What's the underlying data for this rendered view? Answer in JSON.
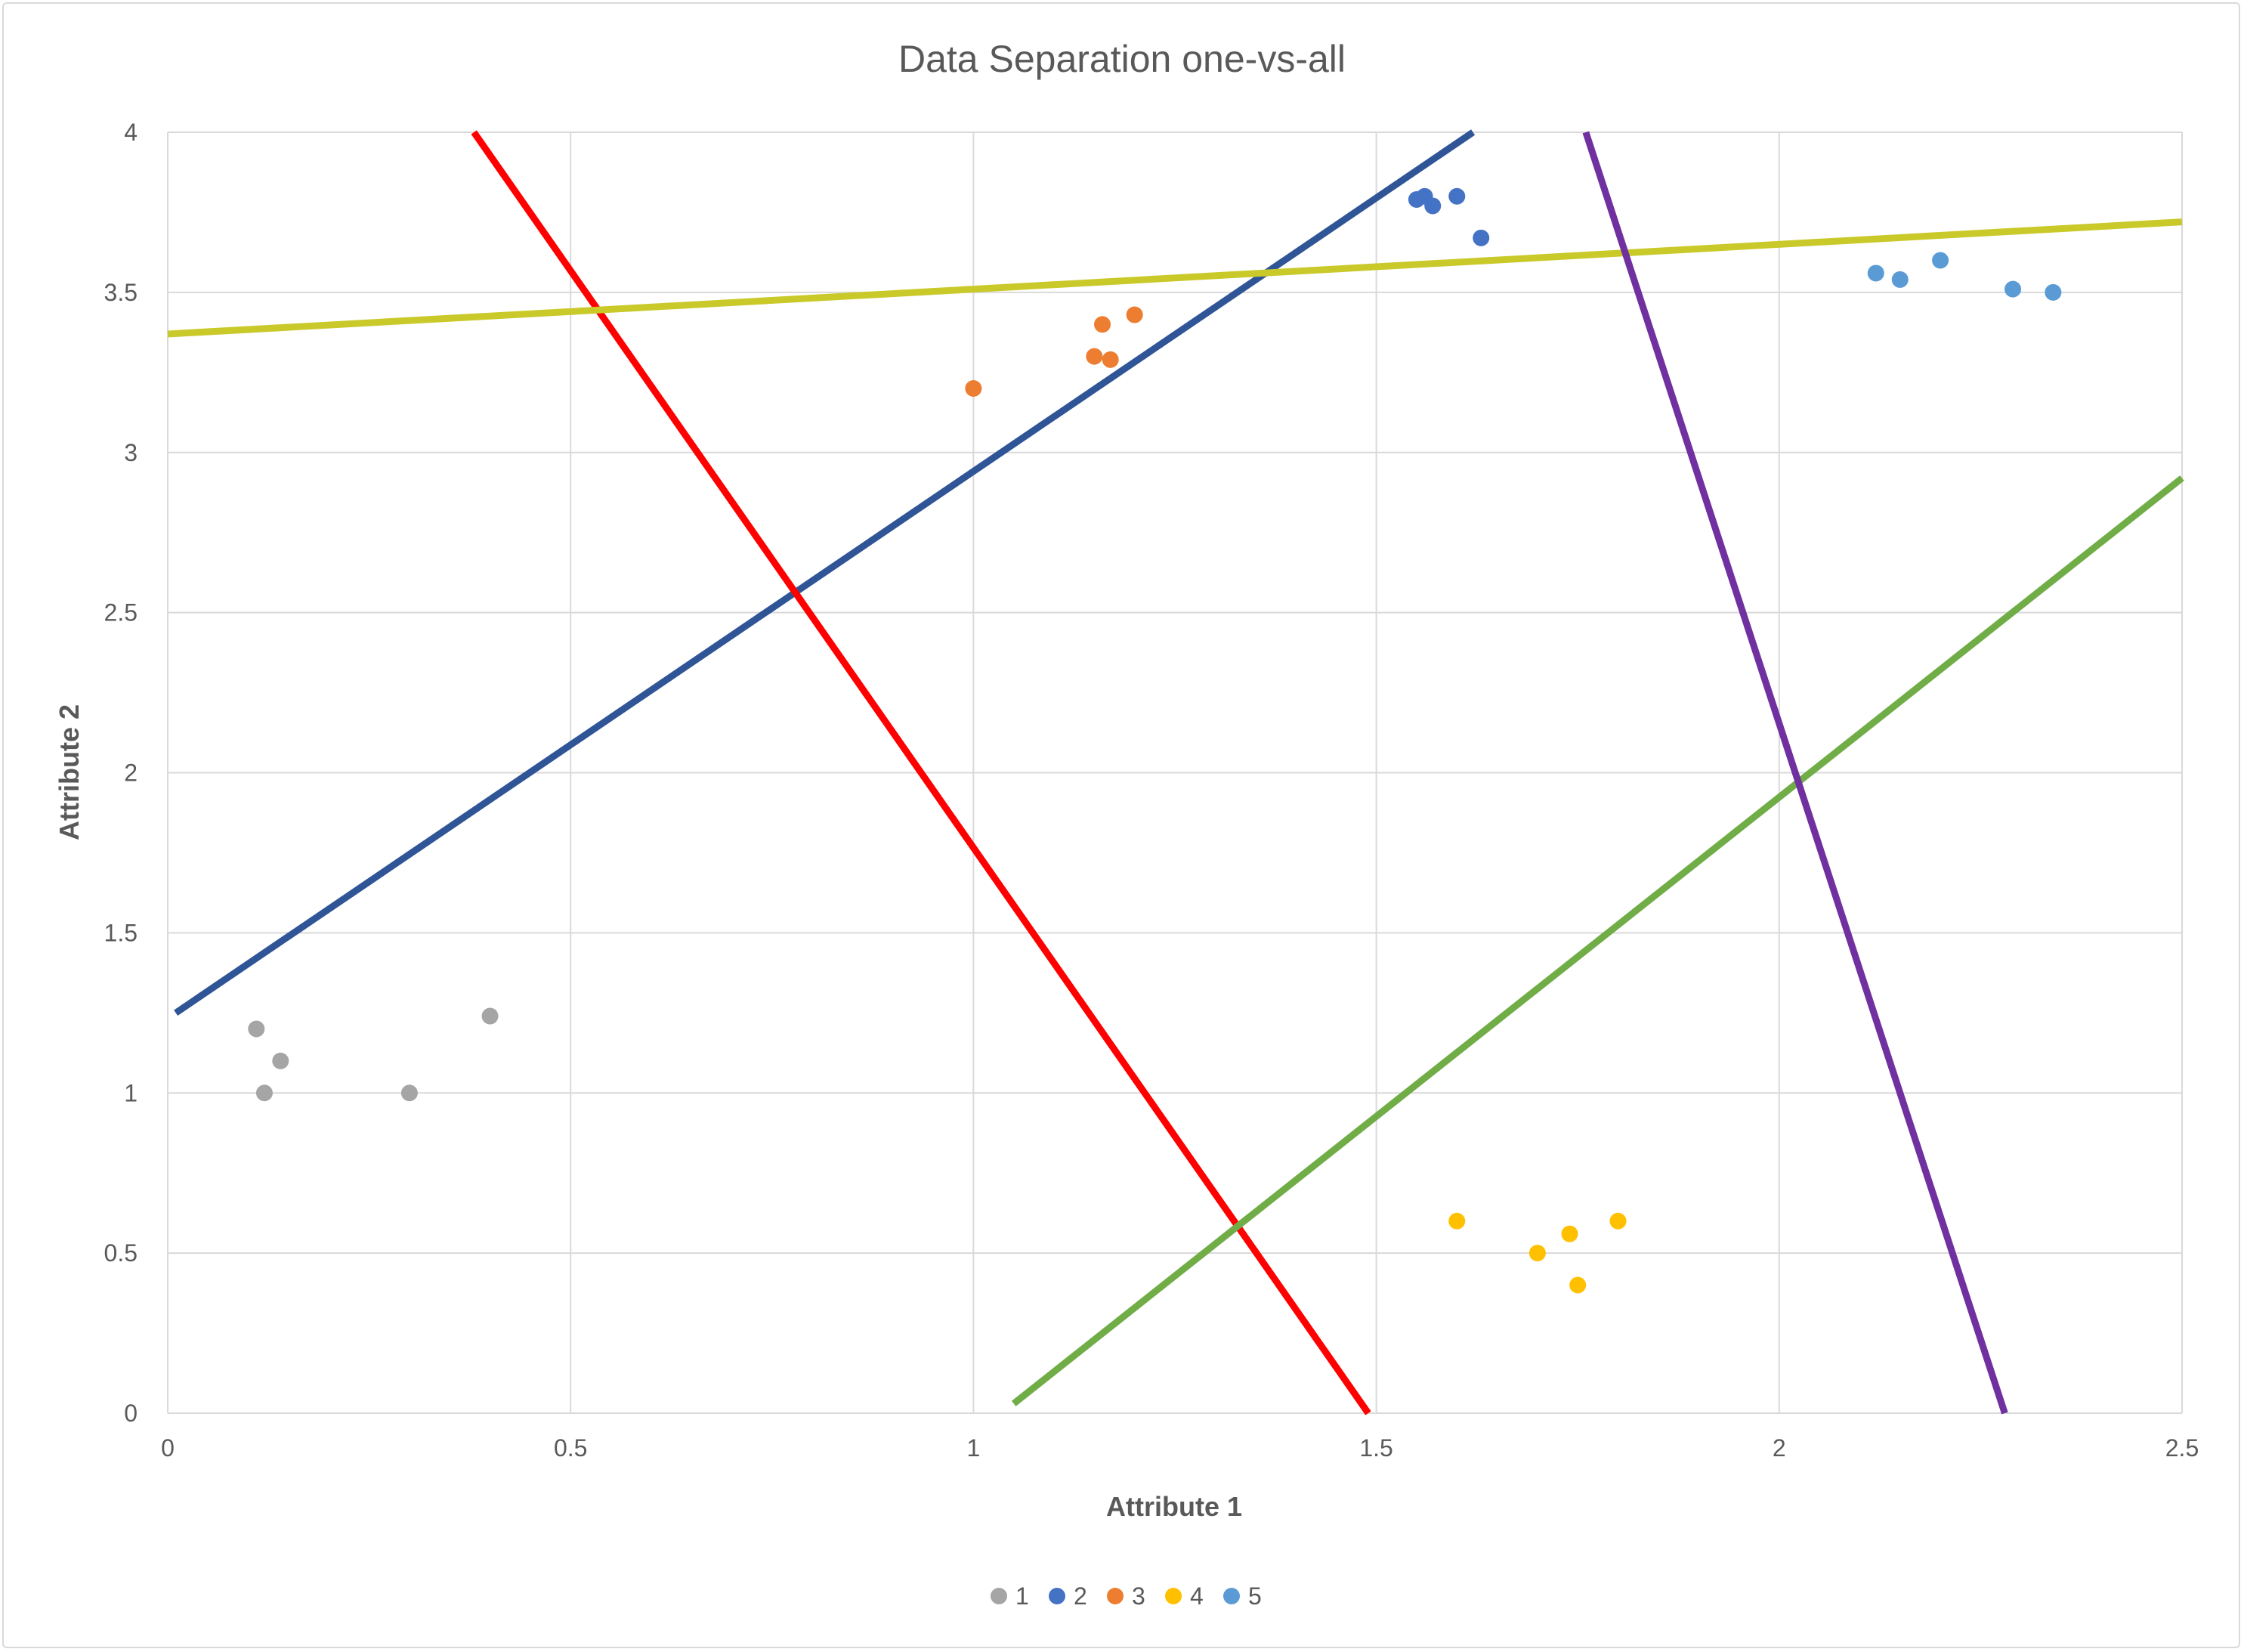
{
  "chart_data": {
    "type": "scatter",
    "title": "Data Separation one-vs-all",
    "xlabel": "Attribute 1",
    "ylabel": "Attribute 2",
    "xlim": [
      0,
      2.5
    ],
    "ylim": [
      0,
      4
    ],
    "x_ticks": [
      "0",
      "0.5",
      "1",
      "1.5",
      "2",
      "2.5"
    ],
    "y_ticks": [
      "0",
      "0.5",
      "1",
      "1.5",
      "2",
      "2.5",
      "3",
      "3.5",
      "4"
    ],
    "grid": true,
    "legend_position": "bottom",
    "series": [
      {
        "name": "1",
        "color": "#a5a5a5",
        "points": [
          [
            0.11,
            1.2
          ],
          [
            0.14,
            1.1
          ],
          [
            0.12,
            1.0
          ],
          [
            0.3,
            1.0
          ],
          [
            0.4,
            1.24
          ]
        ]
      },
      {
        "name": "2",
        "color": "#4472c4",
        "points": [
          [
            1.55,
            3.79
          ],
          [
            1.56,
            3.8
          ],
          [
            1.57,
            3.77
          ],
          [
            1.6,
            3.8
          ],
          [
            1.63,
            3.67
          ]
        ]
      },
      {
        "name": "3",
        "color": "#ed7d31",
        "points": [
          [
            1.0,
            3.2
          ],
          [
            1.15,
            3.3
          ],
          [
            1.16,
            3.4
          ],
          [
            1.17,
            3.29
          ],
          [
            1.2,
            3.43
          ]
        ]
      },
      {
        "name": "4",
        "color": "#ffc000",
        "points": [
          [
            1.6,
            0.6
          ],
          [
            1.7,
            0.5
          ],
          [
            1.74,
            0.56
          ],
          [
            1.75,
            0.4
          ],
          [
            1.8,
            0.6
          ]
        ]
      },
      {
        "name": "5",
        "color": "#5b9bd5",
        "points": [
          [
            2.12,
            3.56
          ],
          [
            2.15,
            3.54
          ],
          [
            2.2,
            3.6
          ],
          [
            2.29,
            3.51
          ],
          [
            2.34,
            3.5
          ]
        ]
      }
    ],
    "separator_lines": [
      {
        "color": "#2f5597",
        "from": [
          0.01,
          1.25
        ],
        "to": [
          1.62,
          4.0
        ]
      },
      {
        "color": "#ff0000",
        "from": [
          0.38,
          4.0
        ],
        "to": [
          1.49,
          0.0
        ]
      },
      {
        "color": "#c9c92a",
        "from": [
          0.0,
          3.37
        ],
        "to": [
          2.5,
          3.72
        ]
      },
      {
        "color": "#70ad47",
        "from": [
          1.05,
          0.03
        ],
        "to": [
          2.5,
          2.92
        ]
      },
      {
        "color": "#7030a0",
        "from": [
          1.76,
          4.0
        ],
        "to": [
          2.28,
          0.0
        ]
      }
    ]
  }
}
